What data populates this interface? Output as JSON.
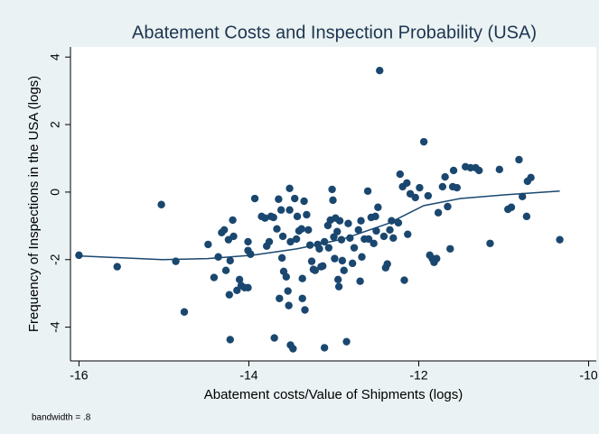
{
  "chart_data": {
    "type": "scatter",
    "title": "Abatement Costs and Inspection Probability (USA)",
    "xlabel": "Abatement costs/Value of Shipments (logs)",
    "ylabel": "Frequency of Inspections in the USA (logs)",
    "note": "bandwidth = .8",
    "color": "#1a476f",
    "x": [
      -16.0,
      -15.55,
      -15.03,
      -14.86,
      -14.76,
      -14.48,
      -14.41,
      -14.36,
      -14.32,
      -14.29,
      -14.27,
      -14.24,
      -14.22,
      -14.23,
      -14.22,
      -14.19,
      -14.18,
      -14.14,
      -14.11,
      -14.09,
      -14.05,
      -14.01,
      -14.01,
      -13.98,
      -14.01,
      -13.93,
      -13.85,
      -13.81,
      -13.74,
      -13.71,
      -13.79,
      -13.76,
      -13.7,
      -13.67,
      -13.65,
      -13.62,
      -13.61,
      -13.6,
      -13.59,
      -13.64,
      -13.56,
      -13.54,
      -13.53,
      -13.52,
      -13.52,
      -13.51,
      -13.51,
      -13.48,
      -13.46,
      -13.44,
      -13.43,
      -13.41,
      -13.38,
      -13.37,
      -13.37,
      -13.34,
      -13.35,
      -13.32,
      -13.3,
      -13.28,
      -13.26,
      -13.24,
      -13.22,
      -13.19,
      -13.17,
      -13.15,
      -13.13,
      -13.11,
      -13.11,
      -13.07,
      -13.06,
      -13.04,
      -13.02,
      -13.01,
      -13.0,
      -12.99,
      -12.98,
      -12.96,
      -12.95,
      -12.94,
      -12.93,
      -12.91,
      -12.9,
      -12.88,
      -12.85,
      -12.83,
      -12.81,
      -12.78,
      -12.76,
      -12.71,
      -12.69,
      -12.68,
      -12.67,
      -12.64,
      -12.6,
      -12.59,
      -12.56,
      -12.53,
      -12.51,
      -12.5,
      -12.48,
      -12.46,
      -12.41,
      -12.39,
      -12.37,
      -12.34,
      -12.32,
      -12.3,
      -12.24,
      -12.22,
      -12.19,
      -12.17,
      -12.14,
      -12.13,
      -12.1,
      -12.04,
      -11.99,
      -11.94,
      -11.89,
      -11.87,
      -11.84,
      -11.82,
      -11.79,
      -11.77,
      -11.72,
      -11.69,
      -11.66,
      -11.63,
      -11.6,
      -11.59,
      -11.55,
      -11.45,
      -11.39,
      -11.33,
      -11.29,
      -11.16,
      -11.05,
      -10.95,
      -10.91,
      -10.82,
      -10.78,
      -10.73,
      -10.72,
      -10.68,
      -10.34
    ],
    "values": [
      -1.87,
      -2.21,
      -0.37,
      -2.05,
      -3.55,
      -1.55,
      -2.53,
      -1.92,
      -1.2,
      -1.12,
      -2.32,
      -1.41,
      -2.03,
      -3.04,
      -4.37,
      -0.83,
      -1.31,
      -2.91,
      -2.59,
      -2.77,
      -2.83,
      -1.47,
      -1.73,
      -1.84,
      -2.83,
      -0.19,
      -0.72,
      -0.77,
      -0.72,
      -0.75,
      -1.6,
      -1.47,
      -4.32,
      -1.09,
      -0.21,
      -0.53,
      -1.95,
      -1.31,
      -2.35,
      -3.15,
      -2.51,
      -2.93,
      -3.36,
      0.11,
      -0.53,
      -1.47,
      -4.53,
      -4.64,
      -0.19,
      -1.39,
      -0.72,
      -1.15,
      -1.09,
      -2.56,
      -3.15,
      -3.49,
      -0.27,
      -0.67,
      -1.12,
      -1.57,
      -2.05,
      -2.29,
      -2.32,
      -1.55,
      -1.68,
      -2.21,
      -2.19,
      -1.47,
      -4.61,
      -0.99,
      -1.65,
      -0.83,
      0.08,
      -0.24,
      -1.33,
      -1.97,
      -0.77,
      -1.17,
      -2.59,
      -2.8,
      -0.85,
      -1.41,
      -2.03,
      -2.32,
      -4.43,
      -0.93,
      -1.36,
      -2.11,
      -1.65,
      -1.12,
      -2.64,
      -0.85,
      -1.92,
      -1.39,
      0.03,
      -1.39,
      -0.75,
      -1.52,
      -0.72,
      -1.15,
      -0.45,
      3.6,
      -1.31,
      -2.24,
      -2.13,
      -1.12,
      -0.85,
      -1.36,
      -0.91,
      0.53,
      0.16,
      -2.61,
      0.27,
      -1.25,
      -0.05,
      -0.16,
      0.13,
      1.49,
      -0.11,
      -1.87,
      -1.97,
      -2.08,
      -1.97,
      -0.61,
      0.16,
      0.45,
      -0.43,
      -1.68,
      0.16,
      0.64,
      0.13,
      0.75,
      0.72,
      0.72,
      0.64,
      -1.52,
      0.67,
      -0.51,
      -0.45,
      0.96,
      -0.13,
      -0.72,
      0.32,
      0.43,
      -1.41
    ],
    "fit": {
      "x": [
        -16.0,
        -15.02,
        -14.49,
        -13.96,
        -13.43,
        -12.89,
        -12.36,
        -11.94,
        -11.51,
        -10.98,
        -10.34
      ],
      "values": [
        -1.89,
        -2.0,
        -1.97,
        -1.87,
        -1.68,
        -1.39,
        -0.93,
        -0.4,
        -0.19,
        -0.08,
        0.03
      ]
    },
    "xlim": [
      -16.1,
      -9.91
    ],
    "ylim": [
      -5.0,
      4.3
    ],
    "xticks": [
      -16,
      -14,
      -12,
      -10
    ],
    "yticks": [
      -4,
      -2,
      0,
      2,
      4
    ],
    "grid": false
  }
}
